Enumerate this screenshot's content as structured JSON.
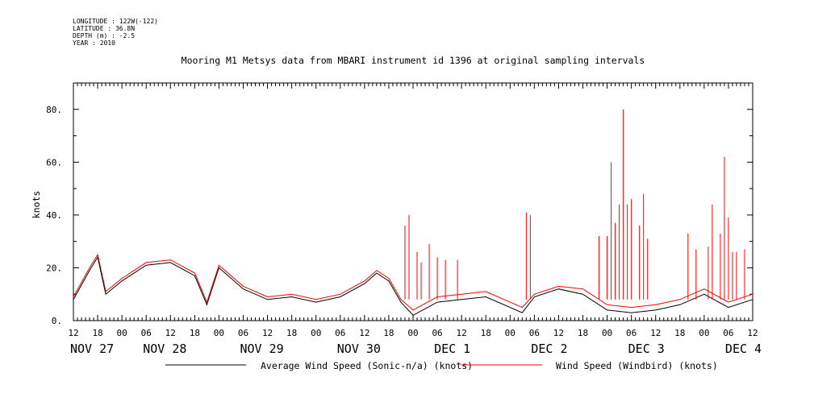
{
  "meta": {
    "longitude": "LONGITUDE : 122W(-122)",
    "latitude": "LATITUDE : 36.8N",
    "depth": "DEPTH (m) : -2.5",
    "year": "YEAR : 2010"
  },
  "chart_data": {
    "type": "line",
    "title": "Mooring M1 Metsys data from MBARI instrument id 1396 at original sampling intervals",
    "ylabel": "knots",
    "xlabel": "",
    "ylim": [
      0,
      90
    ],
    "yticks": [
      0,
      20,
      40,
      60,
      80
    ],
    "ytick_labels": [
      "0.",
      "20.",
      "40.",
      "60.",
      "80."
    ],
    "x_start": "2010-11-27T12:00",
    "x_end": "2010-12-04T12:00",
    "hour_ticks": [
      "12",
      "18",
      "00",
      "06",
      "12",
      "18",
      "00",
      "06",
      "12",
      "18",
      "00",
      "06",
      "12",
      "18",
      "00",
      "06",
      "12",
      "18",
      "00",
      "06",
      "12",
      "18",
      "00",
      "06",
      "12",
      "18",
      "00",
      "06",
      "12"
    ],
    "day_labels": [
      {
        "label": "NOV 27",
        "at": "2010-11-27T12:00"
      },
      {
        "label": "NOV 28",
        "at": "2010-11-28T06:00"
      },
      {
        "label": "NOV 29",
        "at": "2010-11-29T06:00"
      },
      {
        "label": "NOV 30",
        "at": "2010-11-30T06:00"
      },
      {
        "label": "DEC  1",
        "at": "2010-12-01T06:00"
      },
      {
        "label": "DEC  2",
        "at": "2010-12-02T06:00"
      },
      {
        "label": "DEC  3",
        "at": "2010-12-03T06:00"
      },
      {
        "label": "DEC  4",
        "at": "2010-12-04T06:00"
      }
    ],
    "series": [
      {
        "name": "Average Wind Speed (Sonic-n/a) (knots)",
        "color": "#000000",
        "x": [
          "2010-11-27T12:00",
          "2010-11-27T16:00",
          "2010-11-27T18:00",
          "2010-11-27T20:00",
          "2010-11-28T00:00",
          "2010-11-28T06:00",
          "2010-11-28T12:00",
          "2010-11-28T18:00",
          "2010-11-28T21:00",
          "2010-11-29T00:00",
          "2010-11-29T06:00",
          "2010-11-29T12:00",
          "2010-11-29T18:00",
          "2010-11-30T00:00",
          "2010-11-30T06:00",
          "2010-11-30T12:00",
          "2010-11-30T15:00",
          "2010-11-30T18:00",
          "2010-11-30T21:00",
          "2010-12-01T00:00",
          "2010-12-01T06:00",
          "2010-12-01T12:00",
          "2010-12-01T18:00",
          "2010-12-02T00:00",
          "2010-12-02T03:00",
          "2010-12-02T06:00",
          "2010-12-02T12:00",
          "2010-12-02T18:00",
          "2010-12-03T00:00",
          "2010-12-03T06:00",
          "2010-12-03T12:00",
          "2010-12-03T18:00",
          "2010-12-04T00:00",
          "2010-12-04T06:00",
          "2010-12-04T12:00"
        ],
        "y": [
          8,
          19,
          24,
          10,
          15,
          21,
          22,
          17,
          6,
          20,
          12,
          8,
          9,
          7,
          9,
          14,
          18,
          15,
          7,
          2,
          7,
          8,
          9,
          5,
          3,
          9,
          12,
          10,
          4,
          3,
          4,
          6,
          10,
          5,
          8
        ]
      },
      {
        "name": "Wind Speed (Windbird) (knots)",
        "color": "#ff0000",
        "x": [
          "2010-11-27T12:00",
          "2010-11-27T16:00",
          "2010-11-27T18:00",
          "2010-11-27T20:00",
          "2010-11-28T00:00",
          "2010-11-28T06:00",
          "2010-11-28T12:00",
          "2010-11-28T18:00",
          "2010-11-28T21:00",
          "2010-11-29T00:00",
          "2010-11-29T06:00",
          "2010-11-29T12:00",
          "2010-11-29T18:00",
          "2010-11-30T00:00",
          "2010-11-30T06:00",
          "2010-11-30T12:00",
          "2010-11-30T15:00",
          "2010-11-30T18:00",
          "2010-11-30T21:00",
          "2010-12-01T00:00",
          "2010-12-01T06:00",
          "2010-12-01T12:00",
          "2010-12-01T18:00",
          "2010-12-02T00:00",
          "2010-12-02T03:00",
          "2010-12-02T06:00",
          "2010-12-02T12:00",
          "2010-12-02T18:00",
          "2010-12-03T00:00",
          "2010-12-03T06:00",
          "2010-12-03T12:00",
          "2010-12-03T18:00",
          "2010-12-04T00:00",
          "2010-12-04T06:00",
          "2010-12-04T12:00"
        ],
        "y": [
          9,
          20,
          25,
          11,
          16,
          22,
          23,
          18,
          7,
          21,
          13,
          9,
          10,
          8,
          10,
          15,
          19,
          16,
          8,
          4,
          9,
          10,
          11,
          7,
          5,
          10,
          13,
          12,
          6,
          5,
          6,
          8,
          12,
          7,
          10
        ],
        "spikes": [
          {
            "x": "2010-11-30T22:00",
            "y": 36
          },
          {
            "x": "2010-11-30T23:00",
            "y": 40
          },
          {
            "x": "2010-12-01T01:00",
            "y": 26
          },
          {
            "x": "2010-12-01T02:00",
            "y": 22
          },
          {
            "x": "2010-12-01T04:00",
            "y": 29
          },
          {
            "x": "2010-12-01T06:00",
            "y": 24
          },
          {
            "x": "2010-12-01T08:00",
            "y": 23
          },
          {
            "x": "2010-12-01T11:00",
            "y": 23
          },
          {
            "x": "2010-12-02T04:00",
            "y": 41
          },
          {
            "x": "2010-12-02T05:00",
            "y": 40
          },
          {
            "x": "2010-12-02T22:00",
            "y": 32
          },
          {
            "x": "2010-12-03T00:00",
            "y": 32
          },
          {
            "x": "2010-12-03T01:00",
            "y": 60
          },
          {
            "x": "2010-12-03T02:00",
            "y": 37
          },
          {
            "x": "2010-12-03T03:00",
            "y": 44
          },
          {
            "x": "2010-12-03T04:00",
            "y": 80
          },
          {
            "x": "2010-12-03T05:00",
            "y": 44
          },
          {
            "x": "2010-12-03T06:00",
            "y": 46
          },
          {
            "x": "2010-12-03T08:00",
            "y": 36
          },
          {
            "x": "2010-12-03T09:00",
            "y": 48
          },
          {
            "x": "2010-12-03T10:00",
            "y": 31
          },
          {
            "x": "2010-12-03T20:00",
            "y": 33
          },
          {
            "x": "2010-12-03T22:00",
            "y": 27
          },
          {
            "x": "2010-12-04T01:00",
            "y": 28
          },
          {
            "x": "2010-12-04T02:00",
            "y": 44
          },
          {
            "x": "2010-12-04T04:00",
            "y": 33
          },
          {
            "x": "2010-12-04T05:00",
            "y": 62
          },
          {
            "x": "2010-12-04T06:00",
            "y": 39
          },
          {
            "x": "2010-12-04T07:00",
            "y": 26
          },
          {
            "x": "2010-12-04T08:00",
            "y": 26
          },
          {
            "x": "2010-12-04T10:00",
            "y": 27
          }
        ]
      }
    ]
  }
}
